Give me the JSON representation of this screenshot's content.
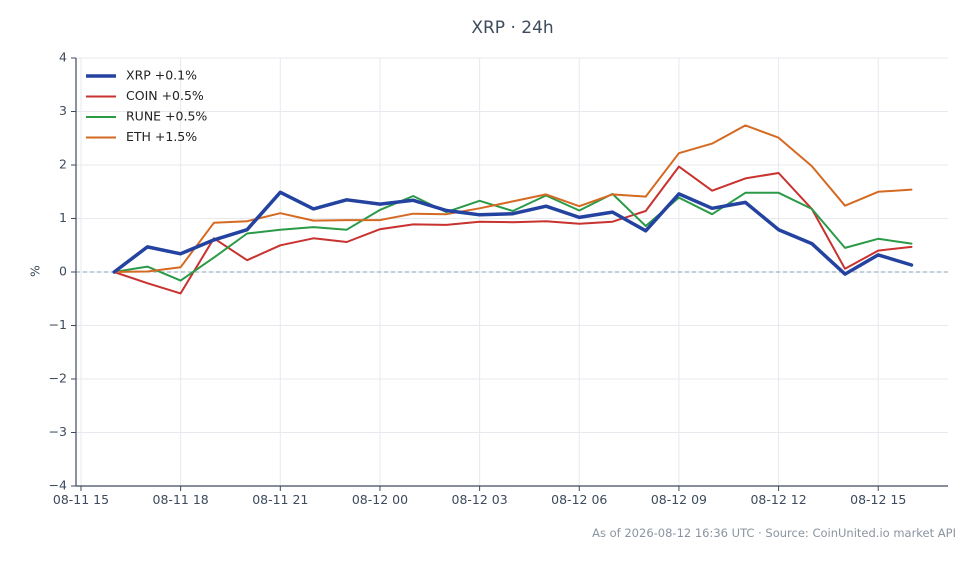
{
  "footer": {
    "as_of": "As of 2026-08-12 16:36 UTC",
    "separator": "·",
    "source": "Source: CoinUnited.io market API"
  },
  "chart_data": {
    "type": "line",
    "title": "XRP · 24h",
    "xlabel": "",
    "ylabel": "%",
    "ylim": [
      -4,
      4
    ],
    "y_ticks": [
      -4,
      -3,
      -2,
      -1,
      0,
      1,
      2,
      3,
      4
    ],
    "y_tick_labels": [
      "−4",
      "−3",
      "−2",
      "−1",
      "0",
      "1",
      "2",
      "3",
      "4"
    ],
    "x_tick_labels": [
      "08-11 15",
      "08-11 18",
      "08-11 21",
      "08-12 00",
      "08-12 03",
      "08-12 06",
      "08-12 09",
      "08-12 12",
      "08-12 15"
    ],
    "x_tick_hours": [
      0,
      3,
      6,
      9,
      12,
      15,
      18,
      21,
      24
    ],
    "x_points_hours": [
      1,
      2,
      3,
      4,
      5,
      6,
      7,
      8,
      9,
      10,
      11,
      12,
      13,
      14,
      15,
      16,
      17,
      18,
      19,
      20,
      21,
      22,
      23,
      24,
      25
    ],
    "xlim_hours": [
      -0.15,
      26.1
    ],
    "grid": true,
    "zero_line": true,
    "legend_position": "top-left",
    "series": [
      {
        "name": "XRP",
        "label": "XRP +0.1%",
        "color": "#2442a0",
        "width": 3.5,
        "values": [
          0.0,
          0.47,
          0.34,
          0.6,
          0.79,
          1.49,
          1.18,
          1.35,
          1.27,
          1.34,
          1.15,
          1.07,
          1.09,
          1.23,
          1.02,
          1.12,
          0.77,
          1.46,
          1.19,
          1.3,
          0.79,
          0.53,
          -0.04,
          0.32,
          0.13
        ]
      },
      {
        "name": "COIN",
        "label": "COIN +0.5%",
        "color": "#c8322f",
        "width": 2,
        "values": [
          0.0,
          -0.21,
          -0.4,
          0.63,
          0.22,
          0.5,
          0.63,
          0.56,
          0.8,
          0.89,
          0.88,
          0.94,
          0.93,
          0.95,
          0.9,
          0.94,
          1.14,
          1.97,
          1.52,
          1.75,
          1.85,
          1.18,
          0.06,
          0.4,
          0.47
        ]
      },
      {
        "name": "RUNE",
        "label": "RUNE +0.5%",
        "color": "#2a9a47",
        "width": 2,
        "values": [
          0.0,
          0.1,
          -0.16,
          0.27,
          0.72,
          0.79,
          0.84,
          0.79,
          1.16,
          1.42,
          1.12,
          1.33,
          1.14,
          1.43,
          1.15,
          1.46,
          0.86,
          1.39,
          1.08,
          1.48,
          1.48,
          1.18,
          0.45,
          0.62,
          0.53
        ]
      },
      {
        "name": "ETH",
        "label": "ETH +1.5%",
        "color": "#d46a22",
        "width": 2,
        "values": [
          0.0,
          0.01,
          0.09,
          0.92,
          0.95,
          1.1,
          0.96,
          0.97,
          0.97,
          1.09,
          1.08,
          1.19,
          1.32,
          1.45,
          1.23,
          1.45,
          1.41,
          2.22,
          2.4,
          2.74,
          2.51,
          1.98,
          1.24,
          1.5,
          1.54
        ]
      }
    ]
  }
}
